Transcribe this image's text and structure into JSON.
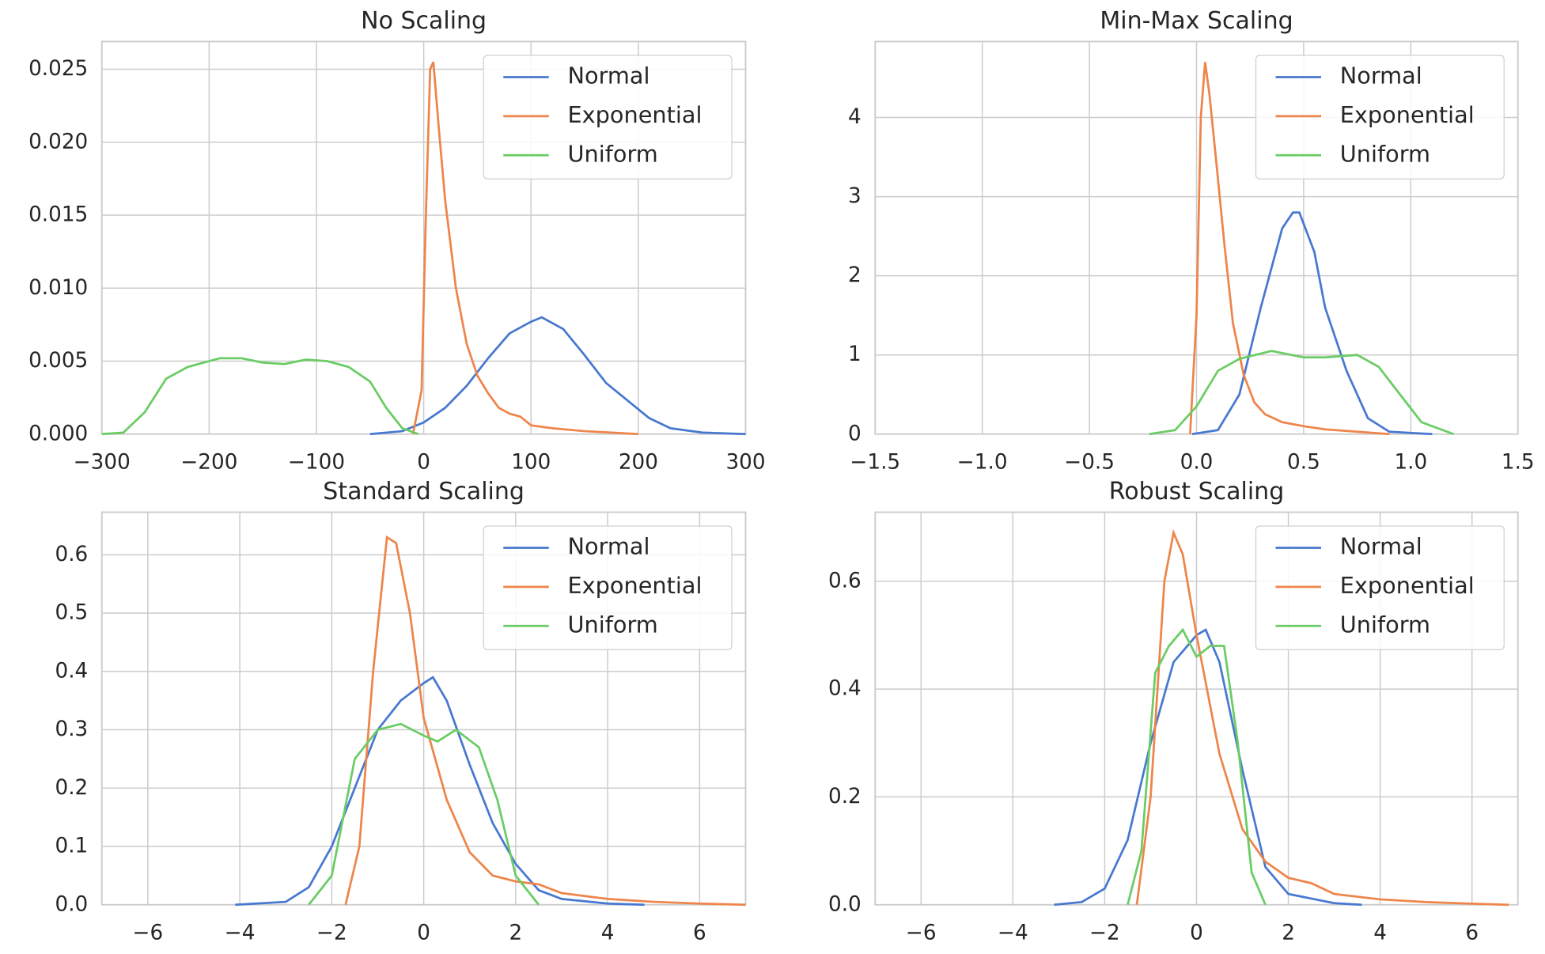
{
  "chart_data": [
    {
      "type": "line",
      "title": "No Scaling",
      "xlim": [
        -300,
        300
      ],
      "ylim": [
        0,
        0.0269
      ],
      "xticks": [
        {
          "value": -300,
          "label": "−300"
        },
        {
          "value": -200,
          "label": "−200"
        },
        {
          "value": -100,
          "label": "−100"
        },
        0,
        100,
        200,
        300
      ],
      "yticks": [
        {
          "value": 0,
          "label": "0.000"
        },
        0.005,
        {
          "value": 0.01,
          "label": "0.010"
        },
        0.015,
        {
          "value": 0.02,
          "label": "0.020"
        },
        0.025
      ],
      "grid": true,
      "legend": "upper right",
      "series": [
        {
          "name": "Normal",
          "color": "#4878d0",
          "x": [
            -50,
            -20,
            0,
            20,
            40,
            60,
            80,
            100,
            110,
            130,
            150,
            170,
            190,
            210,
            230,
            260,
            300
          ],
          "values": [
            0,
            0.0002,
            0.0008,
            0.0018,
            0.0033,
            0.0052,
            0.0069,
            0.0077,
            0.008,
            0.0072,
            0.0054,
            0.0035,
            0.0023,
            0.0011,
            0.0004,
            0.0001,
            0
          ]
        },
        {
          "name": "Exponential",
          "color": "#ee854a",
          "x": [
            -10,
            -2,
            2,
            6,
            9,
            14,
            20,
            30,
            40,
            50,
            60,
            70,
            80,
            90,
            100,
            120,
            150,
            200
          ],
          "values": [
            0,
            0.003,
            0.015,
            0.025,
            0.0255,
            0.021,
            0.016,
            0.01,
            0.0062,
            0.004,
            0.0028,
            0.0018,
            0.0014,
            0.0012,
            0.0006,
            0.0004,
            0.0002,
            0
          ]
        },
        {
          "name": "Uniform",
          "color": "#6acc64",
          "x": [
            -300,
            -280,
            -260,
            -240,
            -220,
            -190,
            -170,
            -150,
            -130,
            -110,
            -90,
            -70,
            -50,
            -35,
            -20,
            -5
          ],
          "values": [
            0,
            0.0001,
            0.0015,
            0.0038,
            0.0046,
            0.0052,
            0.0052,
            0.0049,
            0.0048,
            0.0051,
            0.005,
            0.0046,
            0.0036,
            0.0018,
            0.0004,
            0
          ]
        }
      ]
    },
    {
      "type": "line",
      "title": "Min-Max Scaling",
      "xlim": [
        -1.5,
        1.5
      ],
      "ylim": [
        0,
        4.96
      ],
      "xticks": [
        {
          "value": -1.5,
          "label": "−1.5"
        },
        {
          "value": -1,
          "label": "−1.0"
        },
        {
          "value": -0.5,
          "label": "−0.5"
        },
        {
          "value": 0,
          "label": "0.0"
        },
        0.5,
        {
          "value": 1,
          "label": "1.0"
        },
        1.5
      ],
      "yticks": [
        0,
        1,
        2,
        3,
        4
      ],
      "grid": true,
      "legend": "upper right",
      "series": [
        {
          "name": "Normal",
          "color": "#4878d0",
          "x": [
            -0.02,
            0.1,
            0.2,
            0.3,
            0.4,
            0.45,
            0.48,
            0.55,
            0.6,
            0.7,
            0.8,
            0.9,
            1.1
          ],
          "values": [
            0,
            0.05,
            0.5,
            1.6,
            2.6,
            2.8,
            2.8,
            2.3,
            1.6,
            0.8,
            0.2,
            0.03,
            0
          ]
        },
        {
          "name": "Exponential",
          "color": "#ee854a",
          "x": [
            -0.03,
            0,
            0.02,
            0.04,
            0.06,
            0.09,
            0.13,
            0.17,
            0.22,
            0.27,
            0.32,
            0.4,
            0.5,
            0.6,
            0.7,
            0.8,
            0.9
          ],
          "values": [
            0,
            1.5,
            4,
            4.7,
            4.3,
            3.5,
            2.4,
            1.4,
            0.75,
            0.4,
            0.25,
            0.15,
            0.1,
            0.06,
            0.04,
            0.02,
            0
          ]
        },
        {
          "name": "Uniform",
          "color": "#6acc64",
          "x": [
            -0.22,
            -0.1,
            0,
            0.1,
            0.2,
            0.35,
            0.5,
            0.6,
            0.75,
            0.85,
            0.95,
            1.05,
            1.2
          ],
          "values": [
            0,
            0.05,
            0.35,
            0.8,
            0.95,
            1.05,
            0.97,
            0.97,
            1,
            0.85,
            0.5,
            0.15,
            0
          ]
        }
      ]
    },
    {
      "type": "line",
      "title": "Standard Scaling",
      "xlim": [
        -7,
        7
      ],
      "ylim": [
        0,
        0.673
      ],
      "xticks": [
        {
          "value": -6,
          "label": "−6"
        },
        {
          "value": -4,
          "label": "−4"
        },
        {
          "value": -2,
          "label": "−2"
        },
        0,
        2,
        4,
        6
      ],
      "yticks": [
        {
          "value": 0,
          "label": "0.0"
        },
        0.1,
        0.2,
        0.3,
        0.4,
        0.5,
        0.6
      ],
      "grid": true,
      "legend": "upper right",
      "series": [
        {
          "name": "Normal",
          "color": "#4878d0",
          "x": [
            -4.1,
            -3,
            -2.5,
            -2,
            -1.5,
            -1,
            -0.5,
            0,
            0.2,
            0.5,
            1,
            1.5,
            2,
            2.5,
            3,
            4,
            4.8
          ],
          "values": [
            0,
            0.005,
            0.03,
            0.1,
            0.2,
            0.3,
            0.35,
            0.38,
            0.39,
            0.35,
            0.24,
            0.14,
            0.07,
            0.025,
            0.01,
            0.002,
            0
          ]
        },
        {
          "name": "Exponential",
          "color": "#ee854a",
          "x": [
            -1.7,
            -1.4,
            -1.1,
            -0.8,
            -0.6,
            -0.3,
            0,
            0.5,
            1,
            1.5,
            2,
            2.5,
            3,
            4,
            5,
            6,
            7
          ],
          "values": [
            0,
            0.1,
            0.4,
            0.63,
            0.62,
            0.5,
            0.32,
            0.18,
            0.09,
            0.05,
            0.04,
            0.035,
            0.02,
            0.01,
            0.005,
            0.002,
            0
          ]
        },
        {
          "name": "Uniform",
          "color": "#6acc64",
          "x": [
            -2.5,
            -2,
            -1.5,
            -1,
            -0.5,
            0,
            0.3,
            0.7,
            1.2,
            1.6,
            2,
            2.5
          ],
          "values": [
            0,
            0.05,
            0.25,
            0.3,
            0.31,
            0.29,
            0.28,
            0.3,
            0.27,
            0.18,
            0.05,
            0
          ]
        }
      ]
    },
    {
      "type": "line",
      "title": "Robust Scaling",
      "xlim": [
        -7,
        7
      ],
      "ylim": [
        0,
        0.728
      ],
      "xticks": [
        {
          "value": -6,
          "label": "−6"
        },
        {
          "value": -4,
          "label": "−4"
        },
        {
          "value": -2,
          "label": "−2"
        },
        0,
        2,
        4,
        6
      ],
      "yticks": [
        {
          "value": 0,
          "label": "0.0"
        },
        0.2,
        0.4,
        0.6
      ],
      "grid": true,
      "legend": "upper right",
      "series": [
        {
          "name": "Normal",
          "color": "#4878d0",
          "x": [
            -3.1,
            -2.5,
            -2,
            -1.5,
            -1,
            -0.5,
            0,
            0.2,
            0.5,
            1,
            1.5,
            2,
            3,
            3.6
          ],
          "values": [
            0,
            0.005,
            0.03,
            0.12,
            0.3,
            0.45,
            0.5,
            0.51,
            0.45,
            0.25,
            0.07,
            0.02,
            0.003,
            0
          ]
        },
        {
          "name": "Exponential",
          "color": "#ee854a",
          "x": [
            -1.3,
            -1,
            -0.7,
            -0.5,
            -0.3,
            0,
            0.5,
            1,
            1.5,
            2,
            2.5,
            3,
            4,
            5,
            6,
            6.8
          ],
          "values": [
            0,
            0.2,
            0.6,
            0.69,
            0.65,
            0.5,
            0.28,
            0.14,
            0.08,
            0.05,
            0.04,
            0.02,
            0.01,
            0.005,
            0.002,
            0
          ]
        },
        {
          "name": "Uniform",
          "color": "#6acc64",
          "x": [
            -1.5,
            -1.2,
            -0.9,
            -0.6,
            -0.3,
            0,
            0.3,
            0.6,
            0.9,
            1.2,
            1.5
          ],
          "values": [
            0,
            0.1,
            0.43,
            0.48,
            0.51,
            0.46,
            0.48,
            0.48,
            0.3,
            0.06,
            0
          ]
        }
      ]
    }
  ]
}
